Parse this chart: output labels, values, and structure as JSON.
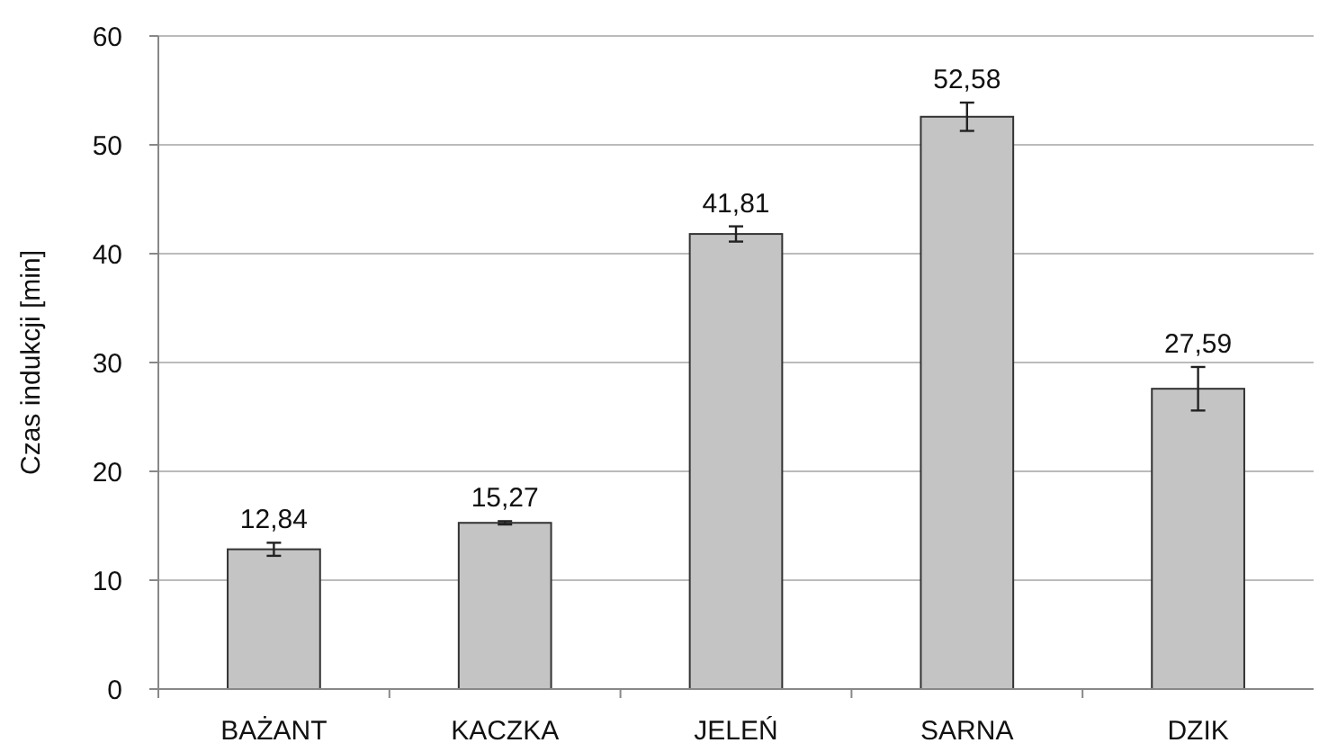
{
  "chart_data": {
    "type": "bar",
    "ylabel": "Czas indukcji [min]",
    "categories": [
      "BAŻANT",
      "KACZKA",
      "JELEŃ",
      "SARNA",
      "DZIK"
    ],
    "values": [
      12.84,
      15.27,
      41.81,
      52.58,
      27.59
    ],
    "value_labels": [
      "12,84",
      "15,27",
      "41,81",
      "52,58",
      "27,59"
    ],
    "errors": [
      0.6,
      0.15,
      0.7,
      1.3,
      2.0
    ],
    "color": "#c4c4c4",
    "ylim": [
      0,
      60
    ],
    "yticks": [
      0,
      10,
      20,
      30,
      40,
      50,
      60
    ],
    "grid": "y"
  }
}
